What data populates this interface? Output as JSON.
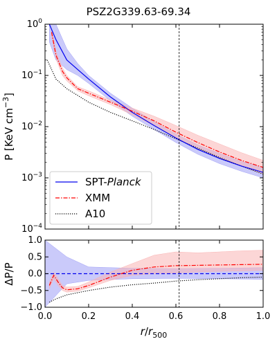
{
  "chart_data": [
    {
      "type": "line",
      "panel": "top",
      "title": "PSZ2G339.63-69.34",
      "ylabel": "P [KeV cm⁻³]",
      "ylabel_main": "P [KeV cm",
      "ylabel_sup": "−3",
      "ylabel_tail": "]",
      "xlim": [
        0.0,
        1.0
      ],
      "ylim": [
        0.0001,
        1.0
      ],
      "yscale": "log",
      "ytick_labels": [
        {
          "base": "10",
          "exp": "0",
          "value": 1.0
        },
        {
          "base": "10",
          "exp": "−1",
          "value": 0.1
        },
        {
          "base": "10",
          "exp": "−2",
          "value": 0.01
        },
        {
          "base": "10",
          "exp": "−3",
          "value": 0.001
        },
        {
          "base": "10",
          "exp": "−4",
          "value": 0.0001
        }
      ],
      "vline_x": 0.615,
      "legend_position": "lower-left",
      "series": [
        {
          "name": "SPT-",
          "name_italic": "Planck",
          "color": "#0000ee",
          "style": "solid",
          "band_color": "#9f9ff5",
          "x": [
            0.02,
            0.05,
            0.1,
            0.15,
            0.2,
            0.3,
            0.4,
            0.5,
            0.6,
            0.7,
            0.8,
            0.9,
            1.0
          ],
          "y": [
            1.0,
            0.5,
            0.2,
            0.13,
            0.085,
            0.038,
            0.019,
            0.0105,
            0.006,
            0.0036,
            0.0024,
            0.0017,
            0.00128
          ],
          "y_low": [
            0.45,
            0.2,
            0.13,
            0.1,
            0.07,
            0.032,
            0.016,
            0.0088,
            0.0049,
            0.0029,
            0.0019,
            0.00135,
            0.001
          ],
          "y_high": [
            1.0,
            1.0,
            0.33,
            0.17,
            0.1,
            0.045,
            0.023,
            0.0125,
            0.0072,
            0.0044,
            0.003,
            0.0021,
            0.0016
          ]
        },
        {
          "name": "XMM",
          "color": "#ff0000",
          "style": "dashdot",
          "band_color": "#fab4b4",
          "x": [
            0.03,
            0.05,
            0.08,
            0.1,
            0.15,
            0.2,
            0.3,
            0.4,
            0.5,
            0.6,
            0.7,
            0.8,
            0.9,
            1.0
          ],
          "y": [
            0.7,
            0.25,
            0.12,
            0.09,
            0.055,
            0.045,
            0.03,
            0.02,
            0.013,
            0.0078,
            0.0049,
            0.0032,
            0.0022,
            0.0016
          ],
          "y_low": [
            0.6,
            0.21,
            0.1,
            0.078,
            0.05,
            0.04,
            0.027,
            0.017,
            0.0105,
            0.0062,
            0.0038,
            0.0025,
            0.0017,
            0.0012
          ],
          "y_high": [
            0.8,
            0.3,
            0.14,
            0.1,
            0.06,
            0.05,
            0.033,
            0.023,
            0.016,
            0.0105,
            0.0068,
            0.0046,
            0.0031,
            0.0022
          ]
        },
        {
          "name": "A10",
          "color": "#000000",
          "style": "dotted",
          "x": [
            0.01,
            0.05,
            0.1,
            0.2,
            0.3,
            0.4,
            0.5,
            0.6,
            0.7,
            0.8,
            0.9,
            1.0
          ],
          "y": [
            0.2,
            0.085,
            0.055,
            0.03,
            0.019,
            0.013,
            0.0088,
            0.0058,
            0.0038,
            0.0025,
            0.0017,
            0.00118
          ]
        }
      ]
    },
    {
      "type": "line",
      "panel": "bottom",
      "ylabel": "ΔP/P",
      "xlabel_r": "r",
      "xlabel_slash": "/",
      "xlabel_rsub": "r",
      "xlabel_sub": "500",
      "xlim": [
        0.0,
        1.0
      ],
      "ylim": [
        -1.0,
        1.0
      ],
      "xticks": [
        0.0,
        0.2,
        0.4,
        0.6,
        0.8,
        1.0
      ],
      "xtick_labels": [
        "0.0",
        "0.2",
        "0.4",
        "0.6",
        "0.8",
        "1.0"
      ],
      "yticks": [
        1.0,
        0.5,
        0.0,
        -0.5,
        -1.0
      ],
      "ytick_labels": [
        "1.0",
        "0.5",
        "0.0",
        "−0.5",
        "−1.0"
      ],
      "vline_x": 0.615,
      "series": [
        {
          "name": "SPT-Planck",
          "color": "#0000ee",
          "band_color": "#9f9ff5",
          "x": [
            0.0,
            0.1,
            0.2,
            0.4,
            0.6,
            0.8,
            1.0
          ],
          "y": [
            0.0,
            0.0,
            0.0,
            0.0,
            0.0,
            0.0,
            0.0
          ],
          "y_low": [
            -1.0,
            -0.3,
            -0.2,
            -0.15,
            -0.14,
            -0.15,
            -0.17
          ],
          "y_high": [
            1.0,
            0.5,
            0.2,
            0.16,
            0.15,
            0.16,
            0.18
          ]
        },
        {
          "name": "XMM",
          "color": "#ff0000",
          "band_color": "#fab4b4",
          "x": [
            0.02,
            0.04,
            0.06,
            0.08,
            0.1,
            0.15,
            0.2,
            0.3,
            0.4,
            0.5,
            0.6,
            0.7,
            0.8,
            0.9,
            1.0
          ],
          "y": [
            -0.35,
            -0.05,
            -0.25,
            -0.42,
            -0.48,
            -0.45,
            -0.35,
            -0.1,
            0.1,
            0.2,
            0.24,
            0.25,
            0.26,
            0.27,
            0.28
          ],
          "y_low": [
            -0.45,
            -0.15,
            -0.35,
            -0.5,
            -0.55,
            -0.52,
            -0.42,
            -0.2,
            -0.05,
            0.0,
            0.02,
            0.05,
            0.07,
            0.08,
            0.1
          ],
          "y_high": [
            -0.25,
            0.05,
            -0.15,
            -0.35,
            -0.4,
            -0.38,
            -0.25,
            0.05,
            0.3,
            0.55,
            0.65,
            0.62,
            0.65,
            0.68,
            0.7
          ]
        },
        {
          "name": "A10",
          "color": "#000000",
          "x": [
            0.02,
            0.05,
            0.1,
            0.2,
            0.3,
            0.4,
            0.5,
            0.6,
            0.7,
            0.8,
            0.9,
            1.0
          ],
          "y": [
            -0.85,
            -0.75,
            -0.63,
            -0.5,
            -0.4,
            -0.33,
            -0.28,
            -0.22,
            -0.18,
            -0.15,
            -0.12,
            -0.1
          ]
        }
      ]
    }
  ]
}
